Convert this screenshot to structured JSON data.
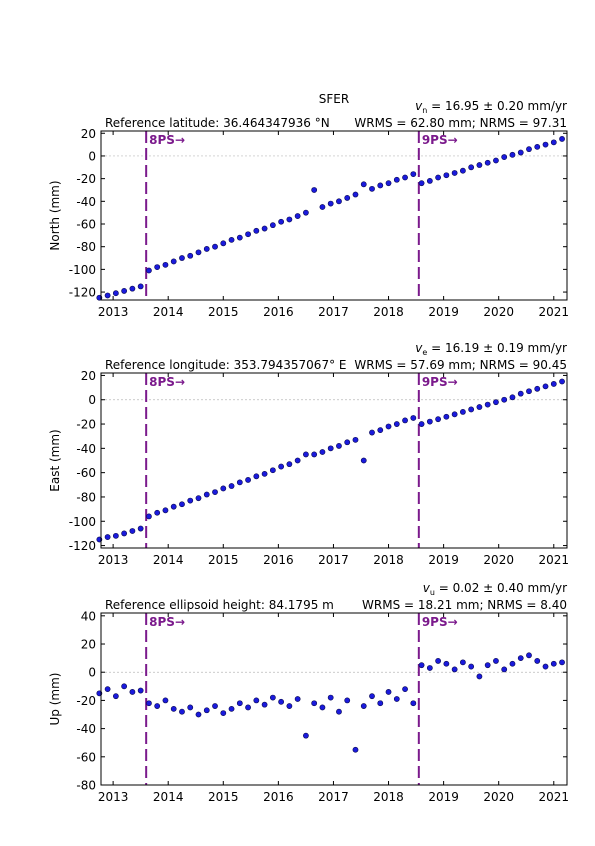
{
  "chart_data": [
    {
      "type": "scatter",
      "title": "SFER",
      "reference": "Reference latitude: 36.464347936 °N",
      "velocity_symbol": "v",
      "velocity_subscript": "n",
      "velocity_text": " = 16.95 ± 0.20 mm/yr",
      "stats": "WRMS = 62.80 mm; NRMS = 97.31",
      "y_label": "North (mm)",
      "color": "#1a1adc",
      "events": [
        {
          "x": 2013.6,
          "label": "8PS→"
        },
        {
          "x": 2018.55,
          "label": "9PS→"
        }
      ],
      "xlim": [
        2012.78,
        2021.24
      ],
      "xticks": [
        2013,
        2014,
        2015,
        2016,
        2017,
        2018,
        2019,
        2020,
        2021
      ],
      "ylim": [
        -127,
        22
      ],
      "yticks": [
        -120,
        -100,
        -80,
        -60,
        -40,
        -20,
        0,
        20
      ],
      "x": [
        2012.75,
        2012.9,
        2013.05,
        2013.2,
        2013.35,
        2013.5,
        2013.65,
        2013.8,
        2013.95,
        2014.1,
        2014.25,
        2014.4,
        2014.55,
        2014.7,
        2014.85,
        2015.0,
        2015.15,
        2015.3,
        2015.45,
        2015.6,
        2015.75,
        2015.9,
        2016.05,
        2016.2,
        2016.35,
        2016.5,
        2016.65,
        2016.8,
        2016.95,
        2017.1,
        2017.25,
        2017.4,
        2017.55,
        2017.7,
        2017.85,
        2018.0,
        2018.15,
        2018.3,
        2018.45,
        2018.6,
        2018.75,
        2018.9,
        2019.05,
        2019.2,
        2019.35,
        2019.5,
        2019.65,
        2019.8,
        2019.95,
        2020.1,
        2020.25,
        2020.4,
        2020.55,
        2020.7,
        2020.85,
        2021.0,
        2021.15
      ],
      "values": [
        -125,
        -123,
        -121,
        -119,
        -117,
        -115,
        -101,
        -98,
        -96,
        -93,
        -90,
        -88,
        -85,
        -82,
        -80,
        -77,
        -74,
        -72,
        -69,
        -66,
        -64,
        -61,
        -58,
        -56,
        -53,
        -50,
        -30,
        -45,
        -42,
        -40,
        -37,
        -34,
        -25,
        -29,
        -26,
        -24,
        -21,
        -19,
        -16,
        -24,
        -22,
        -19,
        -17,
        -15,
        -13,
        -10,
        -8,
        -6,
        -4,
        -1,
        1,
        3,
        6,
        8,
        10,
        12,
        15
      ]
    },
    {
      "type": "scatter",
      "reference": "Reference longitude: 353.794357067° E",
      "velocity_symbol": "v",
      "velocity_subscript": "e",
      "velocity_text": " = 16.19 ± 0.19 mm/yr",
      "stats": "WRMS = 57.69 mm; NRMS = 90.45",
      "y_label": "East (mm)",
      "color": "#1a1adc",
      "events": [
        {
          "x": 2013.6,
          "label": "8PS→"
        },
        {
          "x": 2018.55,
          "label": "9PS→"
        }
      ],
      "xlim": [
        2012.78,
        2021.24
      ],
      "xticks": [
        2013,
        2014,
        2015,
        2016,
        2017,
        2018,
        2019,
        2020,
        2021
      ],
      "ylim": [
        -122,
        22
      ],
      "yticks": [
        -120,
        -100,
        -80,
        -60,
        -40,
        -20,
        0,
        20
      ],
      "x": [
        2012.75,
        2012.9,
        2013.05,
        2013.2,
        2013.35,
        2013.5,
        2013.65,
        2013.8,
        2013.95,
        2014.1,
        2014.25,
        2014.4,
        2014.55,
        2014.7,
        2014.85,
        2015.0,
        2015.15,
        2015.3,
        2015.45,
        2015.6,
        2015.75,
        2015.9,
        2016.05,
        2016.2,
        2016.35,
        2016.5,
        2016.65,
        2016.8,
        2016.95,
        2017.1,
        2017.25,
        2017.4,
        2017.55,
        2017.7,
        2017.85,
        2018.0,
        2018.15,
        2018.3,
        2018.45,
        2018.6,
        2018.75,
        2018.9,
        2019.05,
        2019.2,
        2019.35,
        2019.5,
        2019.65,
        2019.8,
        2019.95,
        2020.1,
        2020.25,
        2020.4,
        2020.55,
        2020.7,
        2020.85,
        2021.0,
        2021.15
      ],
      "values": [
        -115,
        -113,
        -112,
        -110,
        -108,
        -106,
        -96,
        -93,
        -91,
        -88,
        -86,
        -83,
        -81,
        -78,
        -76,
        -73,
        -71,
        -68,
        -66,
        -63,
        -61,
        -58,
        -55,
        -53,
        -50,
        -45,
        -45,
        -43,
        -40,
        -38,
        -35,
        -33,
        -50,
        -27,
        -25,
        -22,
        -20,
        -17,
        -15,
        -20,
        -18,
        -16,
        -14,
        -12,
        -10,
        -8,
        -6,
        -4,
        -2,
        0,
        2,
        5,
        7,
        9,
        11,
        13,
        15
      ]
    },
    {
      "type": "scatter",
      "reference": "Reference ellipsoid height: 84.1795 m",
      "velocity_symbol": "v",
      "velocity_subscript": "u",
      "velocity_text": " = 0.02 ± 0.40 mm/yr",
      "stats": "WRMS = 18.21 mm; NRMS = 8.40",
      "y_label": "Up (mm)",
      "color": "#1a1adc",
      "events": [
        {
          "x": 2013.6,
          "label": "8PS→"
        },
        {
          "x": 2018.55,
          "label": "9PS→"
        }
      ],
      "xlim": [
        2012.78,
        2021.24
      ],
      "xticks": [
        2013,
        2014,
        2015,
        2016,
        2017,
        2018,
        2019,
        2020,
        2021
      ],
      "ylim": [
        -80,
        42
      ],
      "yticks": [
        -80,
        -60,
        -40,
        -20,
        0,
        20,
        40
      ],
      "x": [
        2012.75,
        2012.9,
        2013.05,
        2013.2,
        2013.35,
        2013.5,
        2013.65,
        2013.8,
        2013.95,
        2014.1,
        2014.25,
        2014.4,
        2014.55,
        2014.7,
        2014.85,
        2015.0,
        2015.15,
        2015.3,
        2015.45,
        2015.6,
        2015.75,
        2015.9,
        2016.05,
        2016.2,
        2016.35,
        2016.5,
        2016.65,
        2016.8,
        2016.95,
        2017.1,
        2017.25,
        2017.4,
        2017.55,
        2017.7,
        2017.85,
        2018.0,
        2018.15,
        2018.3,
        2018.45,
        2018.6,
        2018.75,
        2018.9,
        2019.05,
        2019.2,
        2019.35,
        2019.5,
        2019.65,
        2019.8,
        2019.95,
        2020.1,
        2020.25,
        2020.4,
        2020.55,
        2020.7,
        2020.85,
        2021.0,
        2021.15
      ],
      "values": [
        -15,
        -12,
        -17,
        -10,
        -14,
        -13,
        -22,
        -24,
        -20,
        -26,
        -28,
        -25,
        -30,
        -27,
        -24,
        -29,
        -26,
        -22,
        -25,
        -20,
        -23,
        -18,
        -21,
        -24,
        -19,
        -45,
        -22,
        -25,
        -18,
        -28,
        -20,
        -55,
        -24,
        -17,
        -22,
        -14,
        -19,
        -12,
        -22,
        5,
        3,
        8,
        6,
        2,
        7,
        4,
        -3,
        5,
        8,
        2,
        6,
        10,
        12,
        8,
        4,
        6,
        7
      ]
    }
  ]
}
